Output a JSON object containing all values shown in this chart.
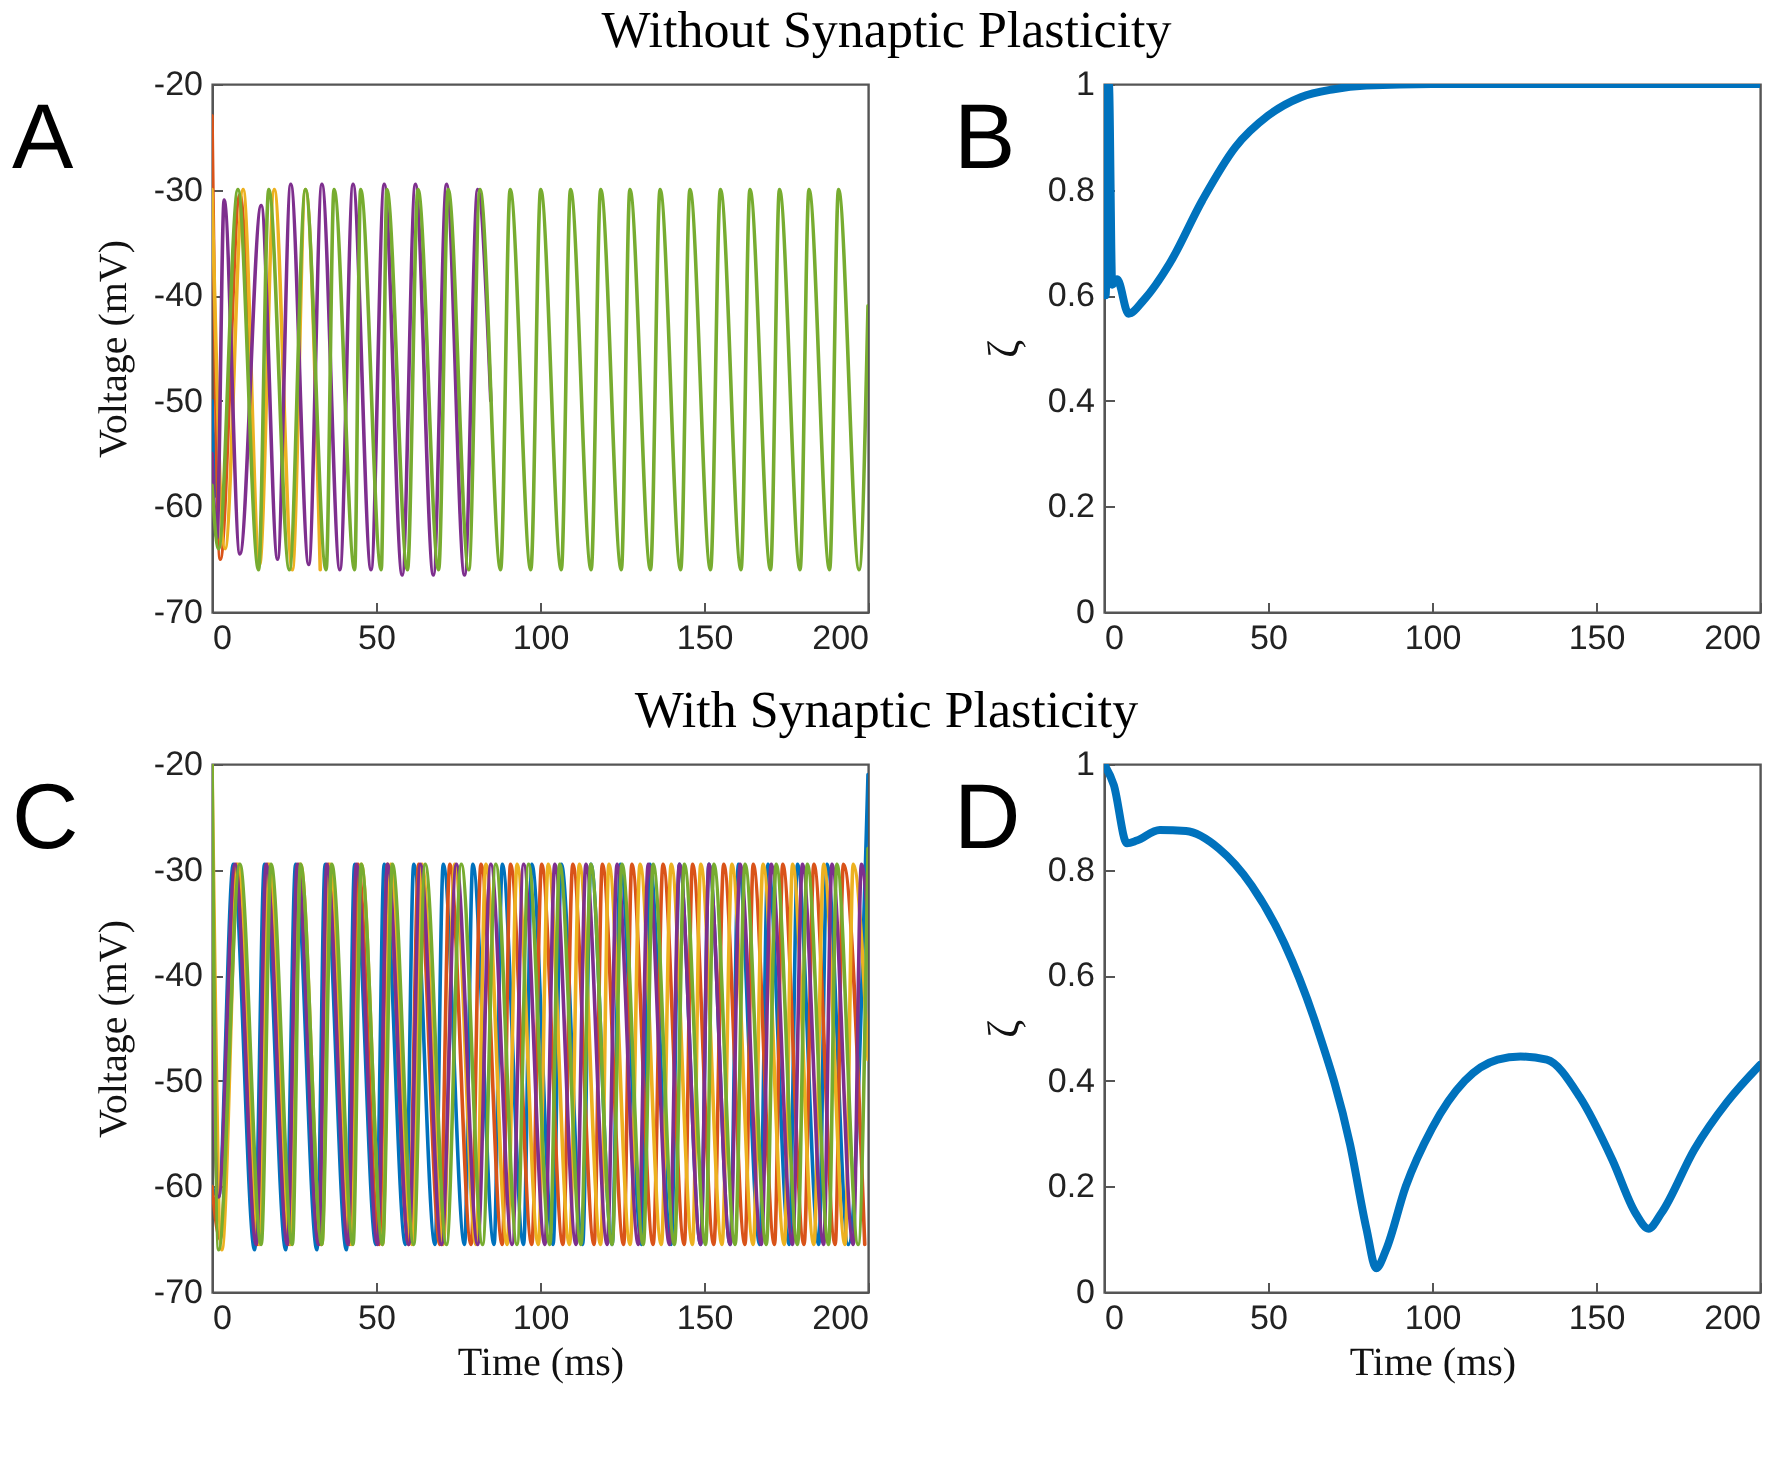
{
  "chart_data": [
    {
      "type": "line",
      "title": "Without Synaptic Plasticity",
      "ylabel": "Voltage (mV)",
      "annotations": [
        "A"
      ],
      "xlim": [
        0,
        200
      ],
      "xticks": [
        0,
        50,
        100,
        150,
        200
      ],
      "ylim": [
        -70,
        -20
      ],
      "yticks": [
        -70,
        -60,
        -50,
        -40,
        -30,
        -20
      ],
      "series": [
        {
          "color": "#0072bd",
          "x": [
            0,
            1
          ],
          "values": [
            -50,
            -59
          ]
        },
        {
          "color": "#d95319",
          "x": [
            0,
            2.5,
            8.5,
            12
          ],
          "values": [
            -23,
            -65,
            -30.5,
            -52
          ]
        },
        {
          "color": "#edb120",
          "x": [
            0,
            4,
            9.5,
            14.5,
            19,
            24.5,
            28.5,
            33
          ],
          "values": [
            -30,
            -64,
            -30,
            -65.5,
            -30,
            -66,
            -30,
            -66
          ]
        },
        {
          "color": "#7e2f8e",
          "x": [
            0,
            1.5,
            3.7,
            8.5,
            15,
            20,
            24,
            29.5,
            33.5,
            39,
            43,
            48.5,
            52.5,
            58,
            62,
            67.5,
            71.5,
            77,
            81,
            85
          ],
          "values": [
            -55,
            -63,
            -31,
            -64.5,
            -31.5,
            -65,
            -29.5,
            -65.5,
            -29.5,
            -66,
            -29.5,
            -66,
            -29.5,
            -66.5,
            -29.5,
            -66.5,
            -29.5,
            -66.5,
            -30,
            -50
          ]
        },
        {
          "color": "#77ac30",
          "x": [
            0,
            2,
            7.9,
            14.2,
            17.3,
            23.6,
            28.5,
            34.8,
            37.2,
            43.5,
            45.3,
            51.6,
            53.3,
            59.6,
            62.8,
            69.1,
            72,
            78.3,
            81.7,
            88,
            90.9,
            97.2,
            100.2,
            106.5,
            109.3,
            115.6,
            118.5,
            124.8,
            127.4,
            133.7,
            136.6,
            142.9,
            145.7,
            152,
            155,
            161.3,
            164,
            170.3,
            173,
            179.3,
            182,
            188.3,
            191,
            197.3,
            200
          ],
          "values": [
            -58,
            -64,
            -30,
            -66,
            -30,
            -66,
            -30,
            -66,
            -30,
            -66,
            -30,
            -66,
            -30,
            -66,
            -30,
            -66,
            -30,
            -66,
            -30,
            -66,
            -30,
            -66,
            -30,
            -66,
            -30,
            -66,
            -30,
            -66,
            -30,
            -66,
            -30,
            -66,
            -30,
            -66,
            -30,
            -66,
            -30,
            -66,
            -30,
            -66,
            -30,
            -66,
            -30,
            -66,
            -41
          ]
        }
      ]
    },
    {
      "type": "line",
      "ylabel": "ζ",
      "annotations": [
        "B"
      ],
      "xlim": [
        0,
        200
      ],
      "xticks": [
        0,
        50,
        100,
        150,
        200
      ],
      "ylim": [
        0,
        1
      ],
      "yticks": [
        0,
        0.2,
        0.4,
        0.6,
        0.8,
        1
      ],
      "series": [
        {
          "color": "#0072bd",
          "x": [
            0,
            0.5,
            1.5,
            2.5,
            4,
            7.5,
            12,
            20,
            30,
            40,
            50,
            60,
            70,
            80,
            100,
            200
          ],
          "values": [
            1,
            0.6,
            1,
            0.62,
            0.63,
            0.565,
            0.59,
            0.66,
            0.78,
            0.88,
            0.94,
            0.975,
            0.99,
            0.997,
            1,
            1
          ]
        }
      ]
    },
    {
      "type": "line",
      "title": "With Synaptic Plasticity",
      "xlabel": "Time (ms)",
      "ylabel": "Voltage (mV)",
      "annotations": [
        "C"
      ],
      "xlim": [
        0,
        200
      ],
      "xticks": [
        0,
        50,
        100,
        150,
        200
      ],
      "ylim": [
        -70,
        -20
      ],
      "yticks": [
        -70,
        -60,
        -50,
        -40,
        -30,
        -20
      ],
      "series": [
        {
          "color": "#0072bd",
          "x": [
            0,
            2,
            6.5,
            13,
            16,
            22.5,
            25.5,
            32,
            34.5,
            41,
            43.5,
            50,
            52.5,
            59,
            61.5,
            68,
            70.5,
            77,
            79.5,
            86,
            88.5,
            95,
            97.5,
            104,
            106.5,
            113,
            115.5,
            122,
            124.5,
            131,
            133.5,
            140,
            142.5,
            149,
            151.5,
            158,
            160.5,
            167,
            169.5,
            176,
            178.5,
            185,
            187.5,
            194,
            200
          ],
          "values": [
            -60,
            -61,
            -29.5,
            -66,
            -29.5,
            -66,
            -29.5,
            -66,
            -29.5,
            -66,
            -29.5,
            -65.5,
            -29.5,
            -65.5,
            -29.5,
            -65.5,
            -29.5,
            -65.5,
            -29.5,
            -65.5,
            -29.5,
            -65.5,
            -29.5,
            -65.5,
            -29.5,
            -65.5,
            -29.5,
            -65.5,
            -29.5,
            -65.5,
            -29.5,
            -65.5,
            -29.5,
            -65.5,
            -29.5,
            -65.5,
            -29.5,
            -65.5,
            -29.5,
            -65.5,
            -29.5,
            -65.5,
            -29.5,
            -65.5,
            -21
          ]
        },
        {
          "color": "#d95319",
          "x": [
            0,
            2.5,
            7.5,
            14,
            17,
            23.5,
            26.5,
            33,
            35.5,
            42,
            44.5,
            51,
            53.5,
            60,
            63,
            69.5,
            72.5,
            79,
            82,
            88.5,
            91,
            97.5,
            100.5,
            107,
            110,
            116.5,
            119,
            125.5,
            128,
            134.5,
            137.5,
            144,
            146.5,
            153,
            156,
            162.5,
            165,
            171.5,
            174,
            180.5,
            183.5,
            190,
            192.5,
            199
          ],
          "values": [
            -60,
            -65,
            -29.5,
            -65.5,
            -29.5,
            -65.5,
            -29.5,
            -65.5,
            -29.5,
            -65.5,
            -29.5,
            -65.5,
            -29.5,
            -65.5,
            -29.5,
            -65.5,
            -29.5,
            -65.5,
            -29.5,
            -65.5,
            -29.5,
            -65.5,
            -29.5,
            -65.5,
            -29.5,
            -65.5,
            -29.5,
            -65.5,
            -29.5,
            -65.5,
            -29.5,
            -65.5,
            -29.5,
            -65.5,
            -29.5,
            -65.5,
            -29.5,
            -65.5,
            -29.5,
            -65.5,
            -29.5,
            -65.5,
            -29.5,
            -65.5
          ]
        },
        {
          "color": "#edb120",
          "x": [
            0,
            3,
            8,
            14.5,
            17.5,
            24,
            27,
            33.5,
            36,
            42.5,
            45.5,
            52,
            54.5,
            61,
            64,
            70.5,
            74,
            80.5,
            83.5,
            90,
            93,
            99.5,
            102.5,
            109,
            112,
            118.5,
            121,
            127.5,
            130.5,
            137,
            140,
            146.5,
            149,
            155.5,
            158.5,
            165,
            168,
            174.5,
            177,
            183.5,
            186.5,
            193,
            195.5,
            200
          ],
          "values": [
            -20,
            -66,
            -29.5,
            -65.5,
            -29.5,
            -65.5,
            -29.5,
            -65.5,
            -29.5,
            -65.5,
            -29.5,
            -65.5,
            -29.5,
            -65.5,
            -29.5,
            -65.5,
            -29.5,
            -65.5,
            -29.5,
            -65.5,
            -29.5,
            -65.5,
            -29.5,
            -65.5,
            -29.5,
            -65.5,
            -29.5,
            -65.5,
            -29.5,
            -65.5,
            -29.5,
            -65.5,
            -29.5,
            -65.5,
            -29.5,
            -65.5,
            -29.5,
            -65.5,
            -29.5,
            -65.5,
            -29.5,
            -65.5,
            -29.5,
            -48
          ]
        },
        {
          "color": "#7e2f8e",
          "x": [
            0,
            2,
            7,
            13.5,
            16.5,
            23,
            26,
            32.5,
            35,
            41.5,
            44,
            50.5,
            53.5,
            60,
            63.5,
            70,
            74.5,
            81,
            85,
            91.5,
            95,
            101.5,
            104.5,
            111,
            114,
            120.5,
            123.5,
            130,
            133,
            139.5,
            142.5,
            149,
            151.5,
            158,
            161,
            167.5,
            170.5,
            177,
            180,
            186.5,
            189,
            195.5,
            198,
            200
          ],
          "values": [
            -45,
            -61,
            -29.5,
            -65.5,
            -29.5,
            -65.5,
            -29.5,
            -65.5,
            -29.5,
            -65.5,
            -29.5,
            -65.5,
            -29.5,
            -65.5,
            -29.5,
            -65.5,
            -29.5,
            -65.5,
            -29.5,
            -65.5,
            -29.5,
            -65.5,
            -29.5,
            -65.5,
            -29.5,
            -65.5,
            -29.5,
            -65.5,
            -29.5,
            -65.5,
            -29.5,
            -65.5,
            -29.5,
            -65.5,
            -29.5,
            -65.5,
            -29.5,
            -65.5,
            -29.5,
            -65.5,
            -29.5,
            -65.5,
            -29.5,
            -35
          ]
        },
        {
          "color": "#77ac30",
          "x": [
            0,
            2,
            8.5,
            15,
            18,
            24.5,
            27,
            33.5,
            36.5,
            43,
            45.5,
            52,
            55,
            61.5,
            65,
            71.5,
            76,
            82.5,
            86.5,
            93,
            96.5,
            103,
            106,
            112.5,
            115.5,
            122,
            125,
            131.5,
            134.5,
            141,
            144,
            150.5,
            153,
            159.5,
            162.5,
            169,
            172,
            178.5,
            181.5,
            188,
            190.5,
            197,
            200
          ],
          "values": [
            -20,
            -66,
            -29.5,
            -65.5,
            -29.5,
            -65.5,
            -29.5,
            -65.5,
            -29.5,
            -65.5,
            -29.5,
            -65.5,
            -29.5,
            -65.5,
            -29.5,
            -65.5,
            -29.5,
            -65.5,
            -29.5,
            -65.5,
            -29.5,
            -65.5,
            -29.5,
            -65.5,
            -29.5,
            -65.5,
            -29.5,
            -65.5,
            -29.5,
            -65.5,
            -29.5,
            -65.5,
            -29.5,
            -65.5,
            -29.5,
            -65.5,
            -29.5,
            -65.5,
            -29.5,
            -65.5,
            -29.5,
            -65.5,
            -28
          ]
        }
      ]
    },
    {
      "type": "line",
      "xlabel": "Time (ms)",
      "ylabel": "ζ",
      "annotations": [
        "D"
      ],
      "xlim": [
        0,
        200
      ],
      "xticks": [
        0,
        50,
        100,
        150,
        200
      ],
      "ylim": [
        0,
        1
      ],
      "yticks": [
        0,
        0.2,
        0.4,
        0.6,
        0.8,
        1
      ],
      "series": [
        {
          "color": "#0072bd",
          "x": [
            0,
            3,
            7,
            10,
            17,
            25,
            35,
            45,
            55,
            65,
            75,
            80,
            83,
            86,
            92,
            100,
            110,
            120,
            127,
            135,
            145,
            155,
            162,
            166,
            170,
            180,
            190,
            200
          ],
          "values": [
            1,
            0.96,
            0.85,
            0.855,
            0.875,
            0.873,
            0.84,
            0.77,
            0.66,
            0.5,
            0.28,
            0.12,
            0.045,
            0.08,
            0.2,
            0.31,
            0.4,
            0.44,
            0.446,
            0.44,
            0.37,
            0.25,
            0.15,
            0.12,
            0.15,
            0.27,
            0.36,
            0.43
          ]
        }
      ]
    }
  ]
}
